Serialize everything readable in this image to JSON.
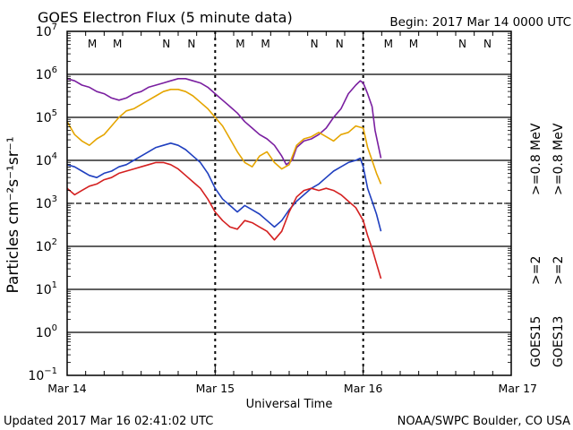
{
  "chart_data": {
    "type": "line",
    "title": "GOES Electron Flux (5 minute data)",
    "begin_label": "Begin: 2017 Mar 14 0000 UTC",
    "xlabel": "Universal Time",
    "ylabel": "Particles cm⁻²s⁻¹sr⁻¹",
    "x_unit": "days since 2017 Mar 14 0000 UTC",
    "xlim": [
      0,
      3
    ],
    "ylim_log10": [
      -1,
      7
    ],
    "yscale": "log",
    "x_ticks": [
      {
        "x": 0,
        "label": "Mar 14"
      },
      {
        "x": 1,
        "label": "Mar 15"
      },
      {
        "x": 2,
        "label": "Mar 16"
      },
      {
        "x": 3,
        "label": "Mar 17"
      }
    ],
    "y_ticks": [
      {
        "exp": 7,
        "base": "10",
        "sup": "7"
      },
      {
        "exp": 6,
        "base": "10",
        "sup": "6"
      },
      {
        "exp": 5,
        "base": "10",
        "sup": "5"
      },
      {
        "exp": 4,
        "base": "10",
        "sup": "4"
      },
      {
        "exp": 3,
        "base": "10",
        "sup": "3"
      },
      {
        "exp": 2,
        "base": "10",
        "sup": "2"
      },
      {
        "exp": 1,
        "base": "10",
        "sup": "1"
      },
      {
        "exp": 0,
        "base": "10",
        "sup": "0"
      },
      {
        "exp": -1,
        "base": "10",
        "sup": "−1"
      }
    ],
    "gridlines_log10": [
      6,
      5,
      4,
      2,
      1,
      0
    ],
    "threshold_log10": 3,
    "mn_markers": [
      {
        "x": 0.17,
        "label": "M",
        "color": "#cc0000"
      },
      {
        "x": 0.34,
        "label": "M",
        "color": "#1f3fbf"
      },
      {
        "x": 0.67,
        "label": "N",
        "color": "#cc0000"
      },
      {
        "x": 0.84,
        "label": "N",
        "color": "#1f3fbf"
      },
      {
        "x": 1.17,
        "label": "M",
        "color": "#cc0000"
      },
      {
        "x": 1.34,
        "label": "M",
        "color": "#1f3fbf"
      },
      {
        "x": 1.67,
        "label": "N",
        "color": "#cc0000"
      },
      {
        "x": 1.84,
        "label": "N",
        "color": "#1f3fbf"
      },
      {
        "x": 2.17,
        "label": "M",
        "color": "#cc0000"
      },
      {
        "x": 2.34,
        "label": "M",
        "color": "#1f3fbf"
      },
      {
        "x": 2.67,
        "label": "N",
        "color": "#cc0000"
      },
      {
        "x": 2.84,
        "label": "N",
        "color": "#1f3fbf"
      }
    ],
    "series": [
      {
        "name": "GOES15 >=0.8 MeV",
        "color": "#7a1fa0",
        "points": [
          [
            0,
            5.9
          ],
          [
            0.05,
            5.85
          ],
          [
            0.1,
            5.75
          ],
          [
            0.15,
            5.7
          ],
          [
            0.2,
            5.6
          ],
          [
            0.25,
            5.55
          ],
          [
            0.3,
            5.45
          ],
          [
            0.35,
            5.4
          ],
          [
            0.4,
            5.45
          ],
          [
            0.45,
            5.55
          ],
          [
            0.5,
            5.6
          ],
          [
            0.55,
            5.7
          ],
          [
            0.6,
            5.75
          ],
          [
            0.65,
            5.8
          ],
          [
            0.7,
            5.85
          ],
          [
            0.75,
            5.9
          ],
          [
            0.8,
            5.9
          ],
          [
            0.85,
            5.85
          ],
          [
            0.9,
            5.8
          ],
          [
            0.95,
            5.7
          ],
          [
            1.0,
            5.55
          ],
          [
            1.05,
            5.4
          ],
          [
            1.1,
            5.25
          ],
          [
            1.15,
            5.1
          ],
          [
            1.2,
            4.9
          ],
          [
            1.25,
            4.75
          ],
          [
            1.3,
            4.6
          ],
          [
            1.35,
            4.5
          ],
          [
            1.4,
            4.35
          ],
          [
            1.45,
            4.1
          ],
          [
            1.48,
            3.9
          ],
          [
            1.52,
            4.0
          ],
          [
            1.55,
            4.3
          ],
          [
            1.6,
            4.45
          ],
          [
            1.65,
            4.5
          ],
          [
            1.7,
            4.6
          ],
          [
            1.75,
            4.75
          ],
          [
            1.8,
            5.0
          ],
          [
            1.85,
            5.2
          ],
          [
            1.9,
            5.55
          ],
          [
            1.95,
            5.75
          ],
          [
            1.98,
            5.85
          ],
          [
            2.0,
            5.8
          ],
          [
            2.03,
            5.55
          ],
          [
            2.06,
            5.25
          ],
          [
            2.08,
            4.7
          ],
          [
            2.12,
            4.05
          ]
        ]
      },
      {
        "name": "GOES13 >=0.8 MeV",
        "color": "#e5a500",
        "points": [
          [
            0,
            4.9
          ],
          [
            0.05,
            4.6
          ],
          [
            0.1,
            4.45
          ],
          [
            0.15,
            4.35
          ],
          [
            0.2,
            4.5
          ],
          [
            0.25,
            4.6
          ],
          [
            0.3,
            4.8
          ],
          [
            0.35,
            5.0
          ],
          [
            0.4,
            5.15
          ],
          [
            0.45,
            5.2
          ],
          [
            0.5,
            5.3
          ],
          [
            0.55,
            5.4
          ],
          [
            0.6,
            5.5
          ],
          [
            0.65,
            5.6
          ],
          [
            0.7,
            5.65
          ],
          [
            0.75,
            5.65
          ],
          [
            0.8,
            5.6
          ],
          [
            0.85,
            5.5
          ],
          [
            0.9,
            5.35
          ],
          [
            0.95,
            5.2
          ],
          [
            1.0,
            5.0
          ],
          [
            1.05,
            4.8
          ],
          [
            1.1,
            4.5
          ],
          [
            1.15,
            4.2
          ],
          [
            1.2,
            3.95
          ],
          [
            1.25,
            3.85
          ],
          [
            1.3,
            4.1
          ],
          [
            1.35,
            4.2
          ],
          [
            1.4,
            3.95
          ],
          [
            1.45,
            3.8
          ],
          [
            1.5,
            3.9
          ],
          [
            1.55,
            4.35
          ],
          [
            1.6,
            4.5
          ],
          [
            1.65,
            4.55
          ],
          [
            1.7,
            4.65
          ],
          [
            1.75,
            4.55
          ],
          [
            1.8,
            4.45
          ],
          [
            1.85,
            4.6
          ],
          [
            1.9,
            4.65
          ],
          [
            1.95,
            4.8
          ],
          [
            2.0,
            4.75
          ],
          [
            2.03,
            4.3
          ],
          [
            2.06,
            4.0
          ],
          [
            2.09,
            3.7
          ],
          [
            2.12,
            3.45
          ]
        ]
      },
      {
        "name": "GOES15 >=2 MeV",
        "color": "#1f3fbf",
        "points": [
          [
            0,
            3.9
          ],
          [
            0.05,
            3.85
          ],
          [
            0.1,
            3.75
          ],
          [
            0.15,
            3.65
          ],
          [
            0.2,
            3.6
          ],
          [
            0.25,
            3.7
          ],
          [
            0.3,
            3.75
          ],
          [
            0.35,
            3.85
          ],
          [
            0.4,
            3.9
          ],
          [
            0.45,
            4.0
          ],
          [
            0.5,
            4.1
          ],
          [
            0.55,
            4.2
          ],
          [
            0.6,
            4.3
          ],
          [
            0.65,
            4.35
          ],
          [
            0.7,
            4.4
          ],
          [
            0.75,
            4.35
          ],
          [
            0.8,
            4.25
          ],
          [
            0.85,
            4.1
          ],
          [
            0.9,
            3.95
          ],
          [
            0.95,
            3.7
          ],
          [
            1.0,
            3.35
          ],
          [
            1.05,
            3.1
          ],
          [
            1.1,
            2.95
          ],
          [
            1.15,
            2.8
          ],
          [
            1.2,
            2.95
          ],
          [
            1.25,
            2.85
          ],
          [
            1.3,
            2.75
          ],
          [
            1.35,
            2.6
          ],
          [
            1.4,
            2.45
          ],
          [
            1.45,
            2.6
          ],
          [
            1.5,
            2.85
          ],
          [
            1.55,
            3.05
          ],
          [
            1.6,
            3.2
          ],
          [
            1.65,
            3.35
          ],
          [
            1.7,
            3.45
          ],
          [
            1.75,
            3.6
          ],
          [
            1.8,
            3.75
          ],
          [
            1.85,
            3.85
          ],
          [
            1.9,
            3.95
          ],
          [
            1.95,
            4.0
          ],
          [
            1.98,
            4.05
          ],
          [
            2.0,
            3.85
          ],
          [
            2.03,
            3.35
          ],
          [
            2.06,
            3.05
          ],
          [
            2.09,
            2.75
          ],
          [
            2.12,
            2.35
          ]
        ]
      },
      {
        "name": "GOES13 >=2 MeV",
        "color": "#d42020",
        "points": [
          [
            0,
            3.35
          ],
          [
            0.05,
            3.2
          ],
          [
            0.1,
            3.3
          ],
          [
            0.15,
            3.4
          ],
          [
            0.2,
            3.45
          ],
          [
            0.25,
            3.55
          ],
          [
            0.3,
            3.6
          ],
          [
            0.35,
            3.7
          ],
          [
            0.4,
            3.75
          ],
          [
            0.45,
            3.8
          ],
          [
            0.5,
            3.85
          ],
          [
            0.55,
            3.9
          ],
          [
            0.6,
            3.95
          ],
          [
            0.65,
            3.95
          ],
          [
            0.7,
            3.9
          ],
          [
            0.75,
            3.8
          ],
          [
            0.8,
            3.65
          ],
          [
            0.85,
            3.5
          ],
          [
            0.9,
            3.35
          ],
          [
            0.95,
            3.1
          ],
          [
            1.0,
            2.8
          ],
          [
            1.05,
            2.6
          ],
          [
            1.1,
            2.45
          ],
          [
            1.15,
            2.4
          ],
          [
            1.2,
            2.6
          ],
          [
            1.25,
            2.55
          ],
          [
            1.3,
            2.45
          ],
          [
            1.35,
            2.35
          ],
          [
            1.4,
            2.15
          ],
          [
            1.45,
            2.35
          ],
          [
            1.5,
            2.8
          ],
          [
            1.55,
            3.15
          ],
          [
            1.6,
            3.3
          ],
          [
            1.65,
            3.35
          ],
          [
            1.7,
            3.3
          ],
          [
            1.75,
            3.35
          ],
          [
            1.8,
            3.3
          ],
          [
            1.85,
            3.2
          ],
          [
            1.9,
            3.05
          ],
          [
            1.95,
            2.9
          ],
          [
            2.0,
            2.6
          ],
          [
            2.03,
            2.25
          ],
          [
            2.06,
            1.95
          ],
          [
            2.09,
            1.6
          ],
          [
            2.12,
            1.25
          ]
        ]
      }
    ],
    "right_legend": [
      {
        "col": 0,
        "label": "GOES15",
        "color": "#000000",
        "pos": "bottom"
      },
      {
        "col": 0,
        "label": ">=2",
        "color": "#1f3fbf",
        "pos": "middle"
      },
      {
        "col": 0,
        "label": ">=0.8 MeV",
        "color": "#7a1fa0",
        "pos": "top"
      },
      {
        "col": 1,
        "label": "GOES13",
        "color": "#000000",
        "pos": "bottom"
      },
      {
        "col": 1,
        "label": ">=2",
        "color": "#d42020",
        "pos": "middle"
      },
      {
        "col": 1,
        "label": ">=0.8 MeV",
        "color": "#e5a500",
        "pos": "top"
      }
    ]
  },
  "footer": {
    "updated": "Updated 2017 Mar 16 02:41:02 UTC",
    "credit": "NOAA/SWPC Boulder, CO USA"
  }
}
